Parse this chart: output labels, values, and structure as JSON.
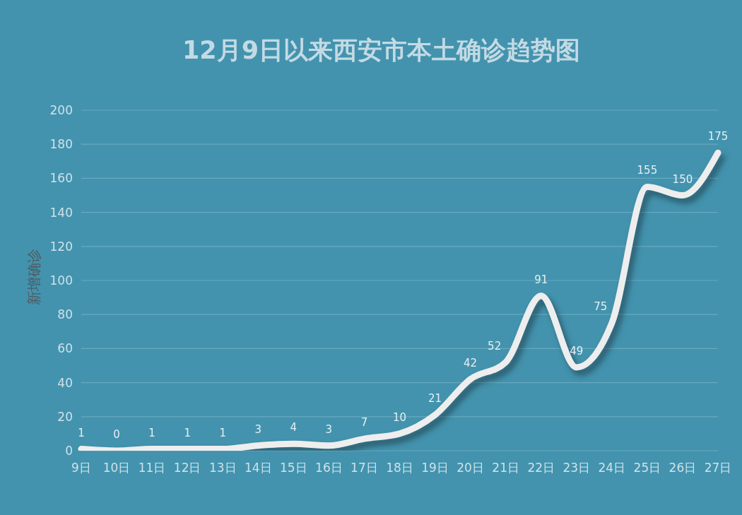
{
  "chart_data": {
    "type": "line",
    "title": "12月9日以来西安市本土确诊趋势图",
    "ylabel": "新增确诊",
    "categories": [
      "9日",
      "10日",
      "11日",
      "12日",
      "13日",
      "14日",
      "15日",
      "16日",
      "17日",
      "18日",
      "19日",
      "20日",
      "21日",
      "22日",
      "23日",
      "24日",
      "25日",
      "26日",
      "27日"
    ],
    "values": [
      1,
      0,
      1,
      1,
      1,
      3,
      4,
      3,
      7,
      10,
      21,
      42,
      52,
      91,
      49,
      75,
      155,
      150,
      175
    ],
    "color": "#eeeeee",
    "ylim": [
      0,
      200
    ],
    "yticks": [
      0,
      20,
      40,
      60,
      80,
      100,
      120,
      140,
      160,
      180,
      200
    ],
    "grid": "y",
    "data_labels": true
  }
}
